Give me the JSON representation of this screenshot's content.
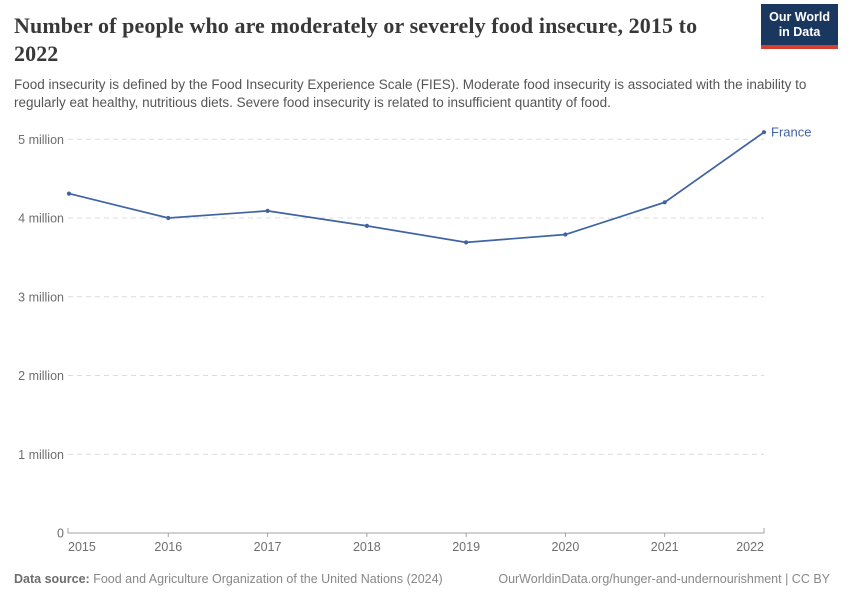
{
  "header": {
    "title": "Number of people who are moderately or severely food insecure, 2015 to 2022",
    "subtitle": "Food insecurity is defined by the Food Insecurity Experience Scale (FIES). Moderate food insecurity is associated with the inability to regularly eat healthy, nutritious diets. Severe food insecurity is related to insufficient quantity of food.",
    "logo": {
      "line1": "Our World",
      "line2": "in Data"
    }
  },
  "chart_data": {
    "type": "line",
    "title": "Number of people who are moderately or severely food insecure, 2015 to 2022",
    "x": [
      2015,
      2016,
      2017,
      2018,
      2019,
      2020,
      2021,
      2022
    ],
    "series": [
      {
        "name": "France",
        "values": [
          4.31,
          4.0,
          4.09,
          3.9,
          3.69,
          3.79,
          4.2,
          5.09
        ],
        "unit": "million people"
      }
    ],
    "ylim": [
      0,
      5.25
    ],
    "yticks": [
      {
        "value": 0,
        "label": "0"
      },
      {
        "value": 1,
        "label": "1 million"
      },
      {
        "value": 2,
        "label": "2 million"
      },
      {
        "value": 3,
        "label": "3 million"
      },
      {
        "value": 4,
        "label": "4 million"
      },
      {
        "value": 5,
        "label": "5 million"
      }
    ],
    "grid": "horizontal-dashed",
    "legend_position": "end-of-line-label",
    "line_color": "#4063a3"
  },
  "colors": {
    "accent_blue": "#4063a3",
    "logo_navy": "#1a3760",
    "logo_red": "#d73e32",
    "grid": "#dcdcdc",
    "axis": "#a3a3a3",
    "tick_text": "#6e6e6e"
  },
  "footer": {
    "datasource_label": "Data source:",
    "datasource_text": " Food and Agriculture Organization of the United Nations (2024)",
    "link_text": "OurWorldinData.org/hunger-and-undernourishment | CC BY"
  }
}
